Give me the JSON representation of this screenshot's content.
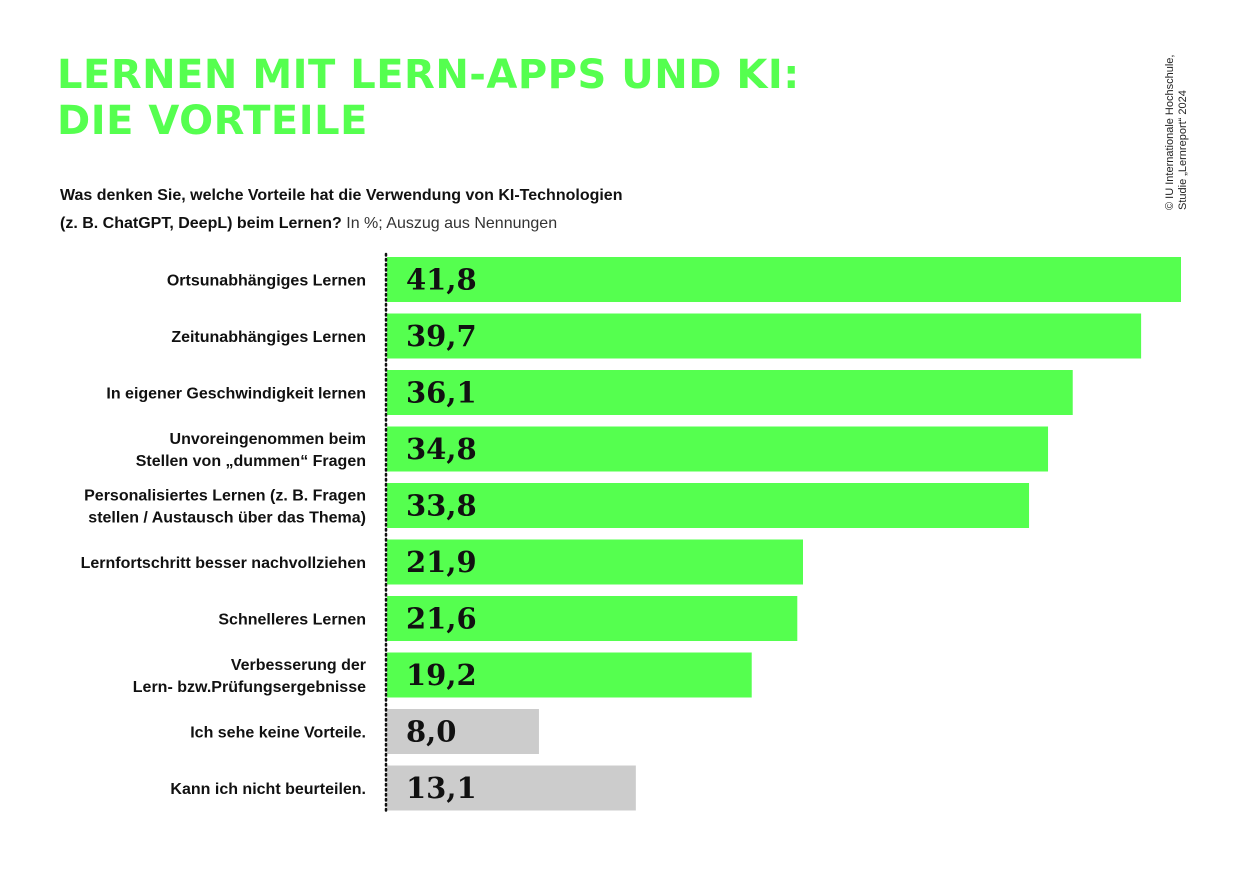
{
  "title": {
    "line1": "LERNEN MIT LERN-APPS UND KI:",
    "line2": "DIE VORTEILE"
  },
  "question": {
    "line1": "Was denken Sie, welche Vorteile hat die Verwendung von KI-Technologien",
    "line2": "(z. B. ChatGPT, DeepL) beim Lernen?",
    "note": "In %; Auszug aus Nennungen"
  },
  "copyright": {
    "line1": "© IU Internationale Hochschule,",
    "line2": "Studie „Lernreport“ 2024"
  },
  "colors": {
    "accent": "#55ff4f",
    "neutral": "#cccccc"
  },
  "chart_data": {
    "type": "bar",
    "orientation": "horizontal",
    "unit": "%",
    "categories": [
      [
        "Ortsunabhängiges Lernen"
      ],
      [
        "Zeitunabhängiges Lernen"
      ],
      [
        "In eigener Geschwindigkeit lernen"
      ],
      [
        "Unvoreingenommen beim",
        "Stellen von „dummen“ Fragen"
      ],
      [
        "Personalisiertes Lernen (z. B. Fragen",
        "stellen / Austausch über das Thema)"
      ],
      [
        "Lernfortschritt besser nachvollziehen"
      ],
      [
        "Schnelleres Lernen"
      ],
      [
        "Verbesserung der",
        "Lern- bzw.Prüfungsergebnisse"
      ],
      [
        "Ich sehe keine Vorteile."
      ],
      [
        "Kann ich nicht beurteilen."
      ]
    ],
    "values": [
      41.8,
      39.7,
      36.1,
      34.8,
      33.8,
      21.9,
      21.6,
      19.2,
      8.0,
      13.1
    ],
    "value_labels": [
      "41,8",
      "39,7",
      "36,1",
      "34,8",
      "33,8",
      "21,9",
      "21,6",
      "19,2",
      "8,0",
      "13,1"
    ],
    "bar_colors": [
      "#55ff4f",
      "#55ff4f",
      "#55ff4f",
      "#55ff4f",
      "#55ff4f",
      "#55ff4f",
      "#55ff4f",
      "#55ff4f",
      "#cccccc",
      "#cccccc"
    ],
    "xlim": [
      0,
      41.8
    ],
    "grid": false,
    "legend": false
  }
}
